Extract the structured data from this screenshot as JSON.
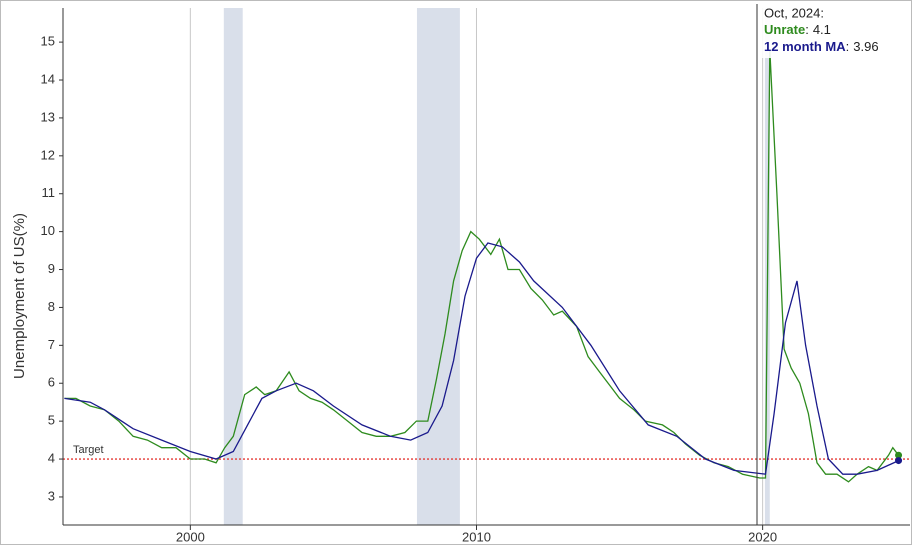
{
  "chart_data": {
    "type": "line",
    "y_label": "Unemployment of US(%)",
    "xlim": [
      1995.55,
      2025.15
    ],
    "ylim": [
      2.26,
      15.9
    ],
    "xticks": [
      2000,
      2010,
      2020
    ],
    "yticks": [
      3,
      4,
      5,
      6,
      7,
      8,
      9,
      10,
      11,
      12,
      13,
      14,
      15
    ],
    "grid_x": true,
    "recessions": [
      [
        2001.17,
        2001.83
      ],
      [
        2007.92,
        2009.42
      ],
      [
        2020.08,
        2020.25
      ]
    ],
    "recession_color": "#d9dfea",
    "target": {
      "value": 4,
      "label": "Target",
      "color": "#e53935"
    },
    "series": [
      {
        "name": "Unrate",
        "color": "#2e8b1e",
        "x": [
          1995.6,
          1996.0,
          1996.5,
          1997.0,
          1997.5,
          1998.0,
          1998.5,
          1999.0,
          1999.5,
          2000.0,
          2000.5,
          2000.9,
          2001.2,
          2001.5,
          2001.9,
          2002.3,
          2002.6,
          2003.0,
          2003.45,
          2003.8,
          2004.2,
          2004.6,
          2005.0,
          2005.5,
          2006.0,
          2006.5,
          2007.0,
          2007.5,
          2007.9,
          2008.3,
          2008.6,
          2008.9,
          2009.2,
          2009.5,
          2009.8,
          2010.1,
          2010.5,
          2010.8,
          2011.1,
          2011.5,
          2011.9,
          2012.3,
          2012.7,
          2013.0,
          2013.5,
          2013.9,
          2014.3,
          2014.7,
          2015.0,
          2015.5,
          2015.9,
          2016.5,
          2016.9,
          2017.3,
          2017.8,
          2018.3,
          2018.8,
          2019.3,
          2019.9,
          2020.1,
          2020.25,
          2020.5,
          2020.75,
          2021.0,
          2021.3,
          2021.6,
          2021.9,
          2022.2,
          2022.6,
          2023.0,
          2023.3,
          2023.7,
          2024.0,
          2024.4,
          2024.55,
          2024.75
        ],
        "values": [
          5.6,
          5.6,
          5.4,
          5.3,
          5.0,
          4.6,
          4.5,
          4.3,
          4.3,
          4.0,
          4.0,
          3.9,
          4.3,
          4.6,
          5.7,
          5.9,
          5.7,
          5.8,
          6.3,
          5.8,
          5.6,
          5.5,
          5.3,
          5.0,
          4.7,
          4.6,
          4.6,
          4.7,
          5.0,
          5.0,
          6.1,
          7.3,
          8.7,
          9.5,
          10.0,
          9.8,
          9.4,
          9.8,
          9.0,
          9.0,
          8.5,
          8.2,
          7.8,
          7.9,
          7.5,
          6.7,
          6.3,
          5.9,
          5.6,
          5.3,
          5.0,
          4.9,
          4.7,
          4.4,
          4.1,
          3.9,
          3.8,
          3.6,
          3.5,
          3.5,
          14.8,
          11.0,
          6.9,
          6.4,
          6.0,
          5.2,
          3.9,
          3.6,
          3.6,
          3.4,
          3.6,
          3.8,
          3.7,
          4.1,
          4.3,
          4.1
        ]
      },
      {
        "name": "12 month MA",
        "color": "#1a1a8c",
        "x": [
          1995.6,
          1996.5,
          1997.0,
          1998.0,
          1999.0,
          2000.0,
          2000.9,
          2001.5,
          2002.0,
          2002.5,
          2003.0,
          2003.7,
          2004.3,
          2005.0,
          2006.0,
          2007.0,
          2007.7,
          2008.3,
          2008.8,
          2009.2,
          2009.6,
          2010.0,
          2010.4,
          2010.9,
          2011.5,
          2012.0,
          2013.0,
          2014.0,
          2015.0,
          2016.0,
          2017.0,
          2018.0,
          2019.0,
          2020.1,
          2020.4,
          2020.8,
          2021.2,
          2021.5,
          2021.9,
          2022.3,
          2022.8,
          2023.3,
          2024.0,
          2024.75
        ],
        "values": [
          5.6,
          5.5,
          5.3,
          4.8,
          4.5,
          4.2,
          4.0,
          4.2,
          4.9,
          5.6,
          5.8,
          6.0,
          5.8,
          5.4,
          4.9,
          4.6,
          4.5,
          4.7,
          5.4,
          6.6,
          8.3,
          9.3,
          9.7,
          9.6,
          9.2,
          8.7,
          8.0,
          7.0,
          5.8,
          4.9,
          4.6,
          4.0,
          3.7,
          3.6,
          5.2,
          7.6,
          8.7,
          7.0,
          5.4,
          4.0,
          3.6,
          3.6,
          3.7,
          3.96
        ]
      }
    ],
    "tooltip": {
      "title": "Oct, 2024:",
      "separator": ":"
    }
  }
}
